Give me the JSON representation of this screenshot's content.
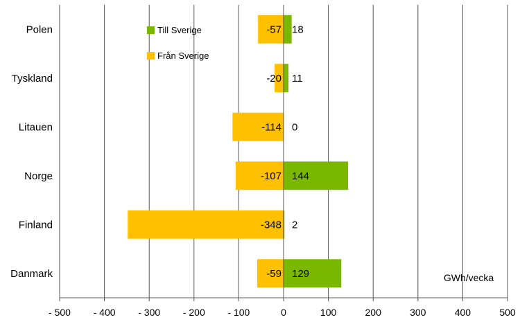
{
  "chart_data": {
    "type": "bar",
    "orientation": "horizontal",
    "categories": [
      "Polen",
      "Tyskland",
      "Litauen",
      "Norge",
      "Finland",
      "Danmark"
    ],
    "series": [
      {
        "name": "Till Sverige",
        "color": "#7ab800",
        "values": [
          18,
          11,
          0,
          144,
          2,
          129
        ]
      },
      {
        "name": "Från Sverige",
        "color": "#ffc000",
        "values": [
          -57,
          -20,
          -114,
          -107,
          -348,
          -59
        ]
      }
    ],
    "data_labels": {
      "Till Sverige": [
        "18",
        "11",
        "0",
        "144",
        "2",
        "129"
      ],
      "Från Sverige": [
        "-57",
        "-20",
        "-114",
        "-107",
        "-348",
        "-59"
      ]
    },
    "x_ticks": [
      -500,
      -400,
      -300,
      -200,
      -100,
      0,
      100,
      200,
      300,
      400,
      500
    ],
    "x_tick_labels": [
      "- 500",
      "- 400",
      "- 300",
      "- 200",
      "- 100",
      "0",
      "100",
      "200",
      "300",
      "400",
      "500"
    ],
    "xlim": [
      -500,
      500
    ],
    "unit_label": "GWh/vecka",
    "title": "",
    "xlabel": "",
    "ylabel": "",
    "grid": "vertical",
    "legend_position": "top-center"
  }
}
